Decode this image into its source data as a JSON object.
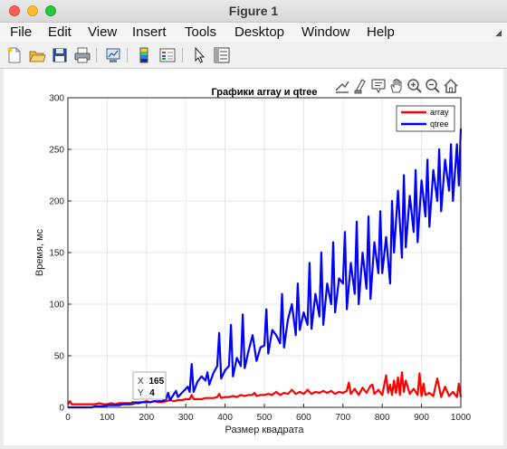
{
  "window": {
    "title": "Figure 1"
  },
  "menu": {
    "items": [
      "File",
      "Edit",
      "View",
      "Insert",
      "Tools",
      "Desktop",
      "Window",
      "Help"
    ]
  },
  "toolbar": {
    "buttons": [
      "new-figure",
      "open-file",
      "save",
      "print",
      "link-plot",
      "insert-colorbar",
      "insert-legend",
      "edit-plot",
      "property-inspector"
    ]
  },
  "axes_toolbar": {
    "buttons": [
      "export",
      "brush",
      "data-tips",
      "pan",
      "zoom-in",
      "zoom-out",
      "home"
    ]
  },
  "datatip": {
    "x_label": "X",
    "x_value": "165",
    "y_label": "Y",
    "y_value": "4"
  },
  "colors": {
    "array": "#ff0000",
    "qtree": "#0000ff"
  },
  "chart_data": {
    "type": "line",
    "title": "Графики array и qtree",
    "xlabel": "Размер квадрата",
    "ylabel": "Время, мс",
    "xlim": [
      0,
      1000
    ],
    "ylim": [
      0,
      300
    ],
    "xticks": [
      "0",
      "100",
      "200",
      "300",
      "400",
      "500",
      "600",
      "700",
      "800",
      "900",
      "1000"
    ],
    "yticks": [
      "0",
      "50",
      "100",
      "150",
      "200",
      "250",
      "300"
    ],
    "grid": true,
    "legend_position": "top-right",
    "series": [
      {
        "name": "array",
        "x": [
          0,
          5,
          10,
          20,
          30,
          40,
          50,
          60,
          70,
          80,
          90,
          100,
          110,
          120,
          130,
          140,
          150,
          160,
          165,
          170,
          180,
          190,
          200,
          210,
          220,
          230,
          240,
          250,
          260,
          270,
          280,
          290,
          300,
          310,
          315,
          320,
          330,
          340,
          350,
          360,
          370,
          380,
          385,
          390,
          400,
          410,
          420,
          430,
          440,
          450,
          460,
          470,
          475,
          480,
          490,
          500,
          510,
          520,
          530,
          540,
          550,
          560,
          570,
          580,
          590,
          600,
          610,
          620,
          630,
          640,
          650,
          660,
          670,
          680,
          690,
          700,
          710,
          715,
          720,
          730,
          740,
          750,
          760,
          770,
          775,
          780,
          790,
          800,
          810,
          815,
          820,
          825,
          830,
          835,
          840,
          845,
          850,
          855,
          860,
          870,
          880,
          890,
          895,
          900,
          905,
          910,
          920,
          930,
          940,
          950,
          960,
          970,
          980,
          990,
          995,
          1000
        ],
        "values": [
          3,
          6,
          3,
          3,
          3,
          3,
          3,
          3,
          3,
          4,
          3,
          3,
          4,
          3,
          4,
          4,
          4,
          4,
          4,
          5,
          5,
          5,
          6,
          5,
          6,
          5,
          5,
          6,
          7,
          6,
          7,
          7,
          8,
          8,
          12,
          8,
          8,
          8,
          9,
          9,
          9,
          10,
          13,
          9,
          10,
          10,
          11,
          10,
          12,
          11,
          12,
          12,
          14,
          11,
          12,
          12,
          13,
          12,
          15,
          12,
          14,
          13,
          17,
          13,
          15,
          13,
          17,
          13,
          15,
          14,
          16,
          14,
          16,
          13,
          15,
          14,
          16,
          24,
          13,
          18,
          12,
          19,
          14,
          21,
          22,
          13,
          17,
          12,
          31,
          14,
          22,
          12,
          26,
          14,
          29,
          12,
          34,
          15,
          26,
          13,
          18,
          12,
          33,
          11,
          23,
          12,
          14,
          11,
          28,
          10,
          20,
          11,
          15,
          10,
          23,
          10
        ]
      },
      {
        "name": "qtree",
        "x": [
          0,
          10,
          20,
          30,
          40,
          50,
          60,
          70,
          80,
          90,
          100,
          110,
          120,
          130,
          140,
          150,
          160,
          170,
          180,
          190,
          200,
          210,
          220,
          230,
          240,
          250,
          255,
          260,
          270,
          275,
          280,
          290,
          300,
          305,
          310,
          315,
          320,
          330,
          340,
          350,
          355,
          360,
          370,
          380,
          385,
          390,
          400,
          410,
          415,
          420,
          430,
          440,
          445,
          450,
          460,
          470,
          475,
          480,
          490,
          500,
          505,
          510,
          520,
          530,
          540,
          545,
          550,
          560,
          570,
          580,
          585,
          590,
          600,
          610,
          615,
          620,
          630,
          640,
          645,
          650,
          660,
          670,
          675,
          680,
          690,
          700,
          705,
          710,
          720,
          730,
          735,
          740,
          750,
          760,
          765,
          770,
          780,
          790,
          795,
          800,
          810,
          820,
          825,
          830,
          840,
          850,
          855,
          860,
          870,
          880,
          885,
          890,
          900,
          910,
          915,
          920,
          930,
          940,
          945,
          950,
          960,
          970,
          975,
          980,
          990,
          995,
          1000
        ],
        "values": [
          0,
          0,
          0,
          0,
          0,
          0,
          0,
          1,
          1,
          1,
          2,
          2,
          2,
          2,
          3,
          3,
          3,
          4,
          4,
          5,
          5,
          5,
          6,
          6,
          6,
          8,
          14,
          7,
          13,
          16,
          10,
          14,
          18,
          20,
          15,
          42,
          15,
          25,
          30,
          26,
          34,
          22,
          33,
          40,
          72,
          28,
          36,
          40,
          80,
          30,
          48,
          40,
          90,
          38,
          55,
          70,
          58,
          45,
          58,
          60,
          95,
          52,
          75,
          70,
          62,
          110,
          58,
          85,
          100,
          70,
          120,
          75,
          92,
          80,
          140,
          76,
          110,
          88,
          150,
          80,
          120,
          100,
          160,
          92,
          125,
          120,
          170,
          95,
          140,
          110,
          180,
          100,
          150,
          115,
          185,
          105,
          160,
          130,
          190,
          130,
          165,
          120,
          200,
          150,
          210,
          145,
          225,
          155,
          205,
          170,
          230,
          160,
          220,
          185,
          240,
          175,
          230,
          200,
          250,
          190,
          240,
          210,
          255,
          200,
          255,
          215,
          270
        ]
      }
    ]
  }
}
